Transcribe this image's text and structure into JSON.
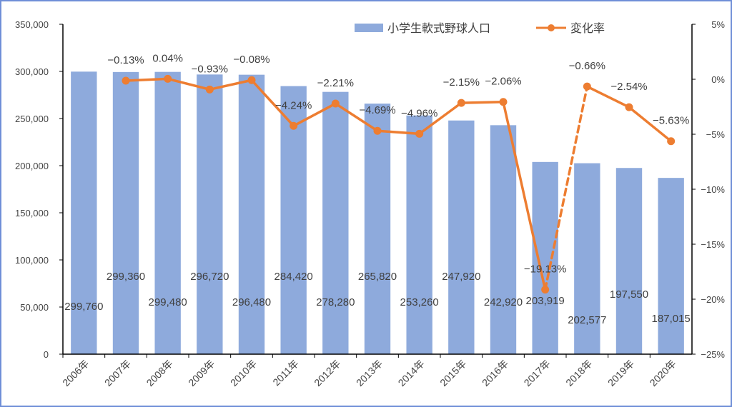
{
  "chart_data": {
    "type": "bar+line",
    "categories": [
      "2006年",
      "2007年",
      "2008年",
      "2009年",
      "2010年",
      "2011年",
      "2012年",
      "2013年",
      "2014年",
      "2015年",
      "2016年",
      "2017年",
      "2018年",
      "2019年",
      "2020年"
    ],
    "bar_series": {
      "name": "小学生軟式野球人口",
      "values": [
        299760,
        299360,
        299480,
        296720,
        296480,
        284420,
        278280,
        265820,
        253260,
        247920,
        242920,
        203919,
        202577,
        197550,
        187015
      ],
      "labels": [
        "299,760",
        "299,360",
        "299,480",
        "296,720",
        "296,480",
        "284,420",
        "278,280",
        "265,820",
        "253,260",
        "247,920",
        "242,920",
        "203,919",
        "202,577",
        "197,550",
        "187,015"
      ],
      "color": "#8eaadc"
    },
    "line_series": {
      "name": "変化率",
      "values": [
        -0.13,
        0.04,
        -0.93,
        -0.08,
        -4.24,
        -2.21,
        -4.69,
        -4.96,
        -2.15,
        -2.06,
        -19.13,
        -0.66,
        -2.54,
        -5.63
      ],
      "labels": [
        "−0.13%",
        "0.04%",
        "−0.93%",
        "−0.08%",
        "−4.24%",
        "−2.21%",
        "−4.69%",
        "−4.96%",
        "−2.15%",
        "−2.06%",
        "−19.13%",
        "−0.66%",
        "−2.54%",
        "−5.63%"
      ],
      "color": "#ed7d31",
      "dashed_segments": [
        [
          10,
          11
        ]
      ]
    },
    "y_left": {
      "ylim": [
        0,
        350000
      ],
      "ticks": [
        "0",
        "50,000",
        "100,000",
        "150,000",
        "200,000",
        "250,000",
        "300,000",
        "350,000"
      ]
    },
    "y_right": {
      "ylim": [
        -25,
        5
      ],
      "ticks": [
        "−25%",
        "−20%",
        "−15%",
        "−10%",
        "−5%",
        "0%",
        "5%"
      ]
    },
    "legend_position": "top-right",
    "grid": false
  }
}
